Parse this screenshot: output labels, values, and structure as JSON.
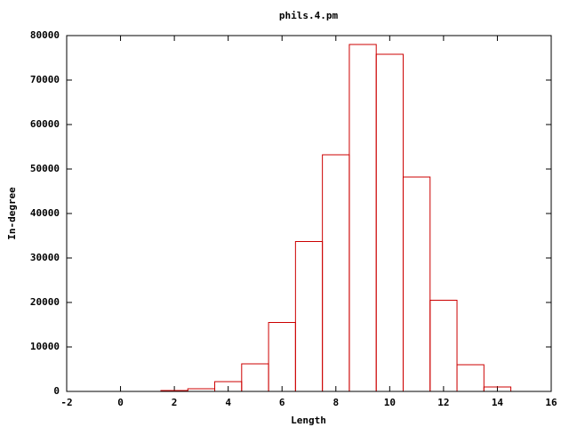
{
  "chart_data": {
    "type": "histogram",
    "title": "phils.4.pm",
    "x_label": "Length",
    "y_label": "In-degree",
    "bins": [
      1.5,
      2.5,
      3.5,
      4.5,
      5.5,
      6.5,
      7.5,
      8.5,
      9.5,
      10.5,
      11.5,
      12.5,
      13.5,
      14.5
    ],
    "counts": [
      200,
      600,
      2200,
      6200,
      15500,
      33700,
      53200,
      78000,
      75800,
      48200,
      20500,
      6000,
      1000
    ],
    "color": "#cc0000",
    "xlim": [
      -2,
      16
    ],
    "xticks": [
      -2,
      0,
      2,
      4,
      6,
      8,
      10,
      12,
      14,
      16
    ],
    "ylim": [
      0,
      80000
    ],
    "yticks": [
      0,
      10000,
      20000,
      30000,
      40000,
      50000,
      60000,
      70000,
      80000
    ]
  }
}
